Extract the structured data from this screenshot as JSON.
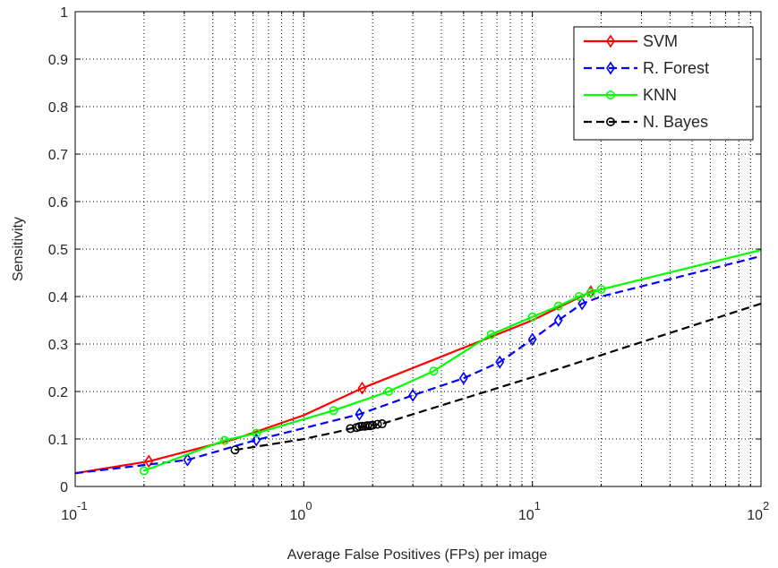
{
  "chart_data": {
    "type": "line",
    "title": "",
    "xlabel": "Average False Positives (FPs) per image",
    "ylabel": "Sensitivity",
    "xscale": "log",
    "xlim": [
      0.1,
      100
    ],
    "ylim": [
      0,
      1
    ],
    "grid": true,
    "legend_position": "top-right",
    "x_ticks": [
      {
        "value": 0.1,
        "base": "10",
        "exp": "-1"
      },
      {
        "value": 1,
        "base": "10",
        "exp": "0"
      },
      {
        "value": 10,
        "base": "10",
        "exp": "1"
      },
      {
        "value": 100,
        "base": "10",
        "exp": "2"
      }
    ],
    "y_ticks": [
      0,
      0.1,
      0.2,
      0.3,
      0.4,
      0.5,
      0.6,
      0.7,
      0.8,
      0.9,
      1
    ],
    "y_tick_labels": [
      "0",
      "0.1",
      "0.2",
      "0.3",
      "0.4",
      "0.5",
      "0.6",
      "0.7",
      "0.8",
      "0.9",
      "1"
    ],
    "series": [
      {
        "name": "SVM",
        "color": "#ff0000",
        "dash": "solid",
        "marker": "diamond",
        "line": [
          [
            0.1,
            0.028
          ],
          [
            0.21,
            0.053
          ],
          [
            0.5,
            0.1
          ],
          [
            1.0,
            0.15
          ],
          [
            1.8,
            0.207
          ],
          [
            5.5,
            0.3
          ],
          [
            10,
            0.35
          ],
          [
            18,
            0.41
          ],
          [
            19,
            0.413
          ]
        ],
        "markers": [
          [
            0.21,
            0.053
          ],
          [
            1.8,
            0.207
          ],
          [
            18,
            0.41
          ]
        ]
      },
      {
        "name": "R. Forest",
        "color": "#0000ff",
        "dash": "dashed",
        "marker": "diamond",
        "line": [
          [
            0.1,
            0.028
          ],
          [
            0.2,
            0.045
          ],
          [
            0.31,
            0.056
          ],
          [
            0.62,
            0.098
          ],
          [
            1.75,
            0.152
          ],
          [
            3.0,
            0.192
          ],
          [
            5.0,
            0.228
          ],
          [
            7.2,
            0.262
          ],
          [
            10,
            0.31
          ],
          [
            13,
            0.35
          ],
          [
            16.5,
            0.385
          ],
          [
            20,
            0.4
          ],
          [
            100,
            0.485
          ]
        ],
        "markers": [
          [
            0.31,
            0.056
          ],
          [
            0.62,
            0.098
          ],
          [
            1.75,
            0.152
          ],
          [
            3.0,
            0.192
          ],
          [
            5.0,
            0.228
          ],
          [
            7.2,
            0.262
          ],
          [
            10,
            0.31
          ],
          [
            13,
            0.35
          ],
          [
            16.5,
            0.385
          ]
        ]
      },
      {
        "name": "KNN",
        "color": "#00ff00",
        "dash": "solid",
        "marker": "circle",
        "line": [
          [
            0.2,
            0.033
          ],
          [
            0.45,
            0.097
          ],
          [
            0.62,
            0.112
          ],
          [
            1.35,
            0.16
          ],
          [
            2.35,
            0.2
          ],
          [
            3.7,
            0.243
          ],
          [
            6.6,
            0.32
          ],
          [
            10,
            0.357
          ],
          [
            13,
            0.38
          ],
          [
            16,
            0.4
          ],
          [
            18,
            0.408
          ],
          [
            20,
            0.415
          ],
          [
            100,
            0.498
          ]
        ],
        "markers": [
          [
            0.2,
            0.033
          ],
          [
            0.45,
            0.097
          ],
          [
            0.62,
            0.112
          ],
          [
            1.35,
            0.16
          ],
          [
            2.35,
            0.2
          ],
          [
            3.7,
            0.243
          ],
          [
            6.6,
            0.32
          ],
          [
            10,
            0.357
          ],
          [
            13,
            0.38
          ],
          [
            16,
            0.4
          ],
          [
            18,
            0.408
          ],
          [
            20,
            0.415
          ]
        ]
      },
      {
        "name": "N. Bayes",
        "color": "#000000",
        "dash": "dashed",
        "marker": "circle",
        "line": [
          [
            0.5,
            0.077
          ],
          [
            0.7,
            0.088
          ],
          [
            1.0,
            0.1
          ],
          [
            1.4,
            0.115
          ],
          [
            1.6,
            0.122
          ],
          [
            2.2,
            0.132
          ],
          [
            10,
            0.23
          ],
          [
            100,
            0.385
          ]
        ],
        "markers": [
          [
            0.5,
            0.077
          ],
          [
            1.6,
            0.122
          ],
          [
            1.7,
            0.124
          ],
          [
            1.75,
            0.126
          ],
          [
            1.8,
            0.127
          ],
          [
            1.85,
            0.127
          ],
          [
            1.9,
            0.128
          ],
          [
            1.95,
            0.128
          ],
          [
            2.0,
            0.129
          ],
          [
            2.1,
            0.131
          ],
          [
            2.2,
            0.132
          ]
        ]
      }
    ]
  }
}
